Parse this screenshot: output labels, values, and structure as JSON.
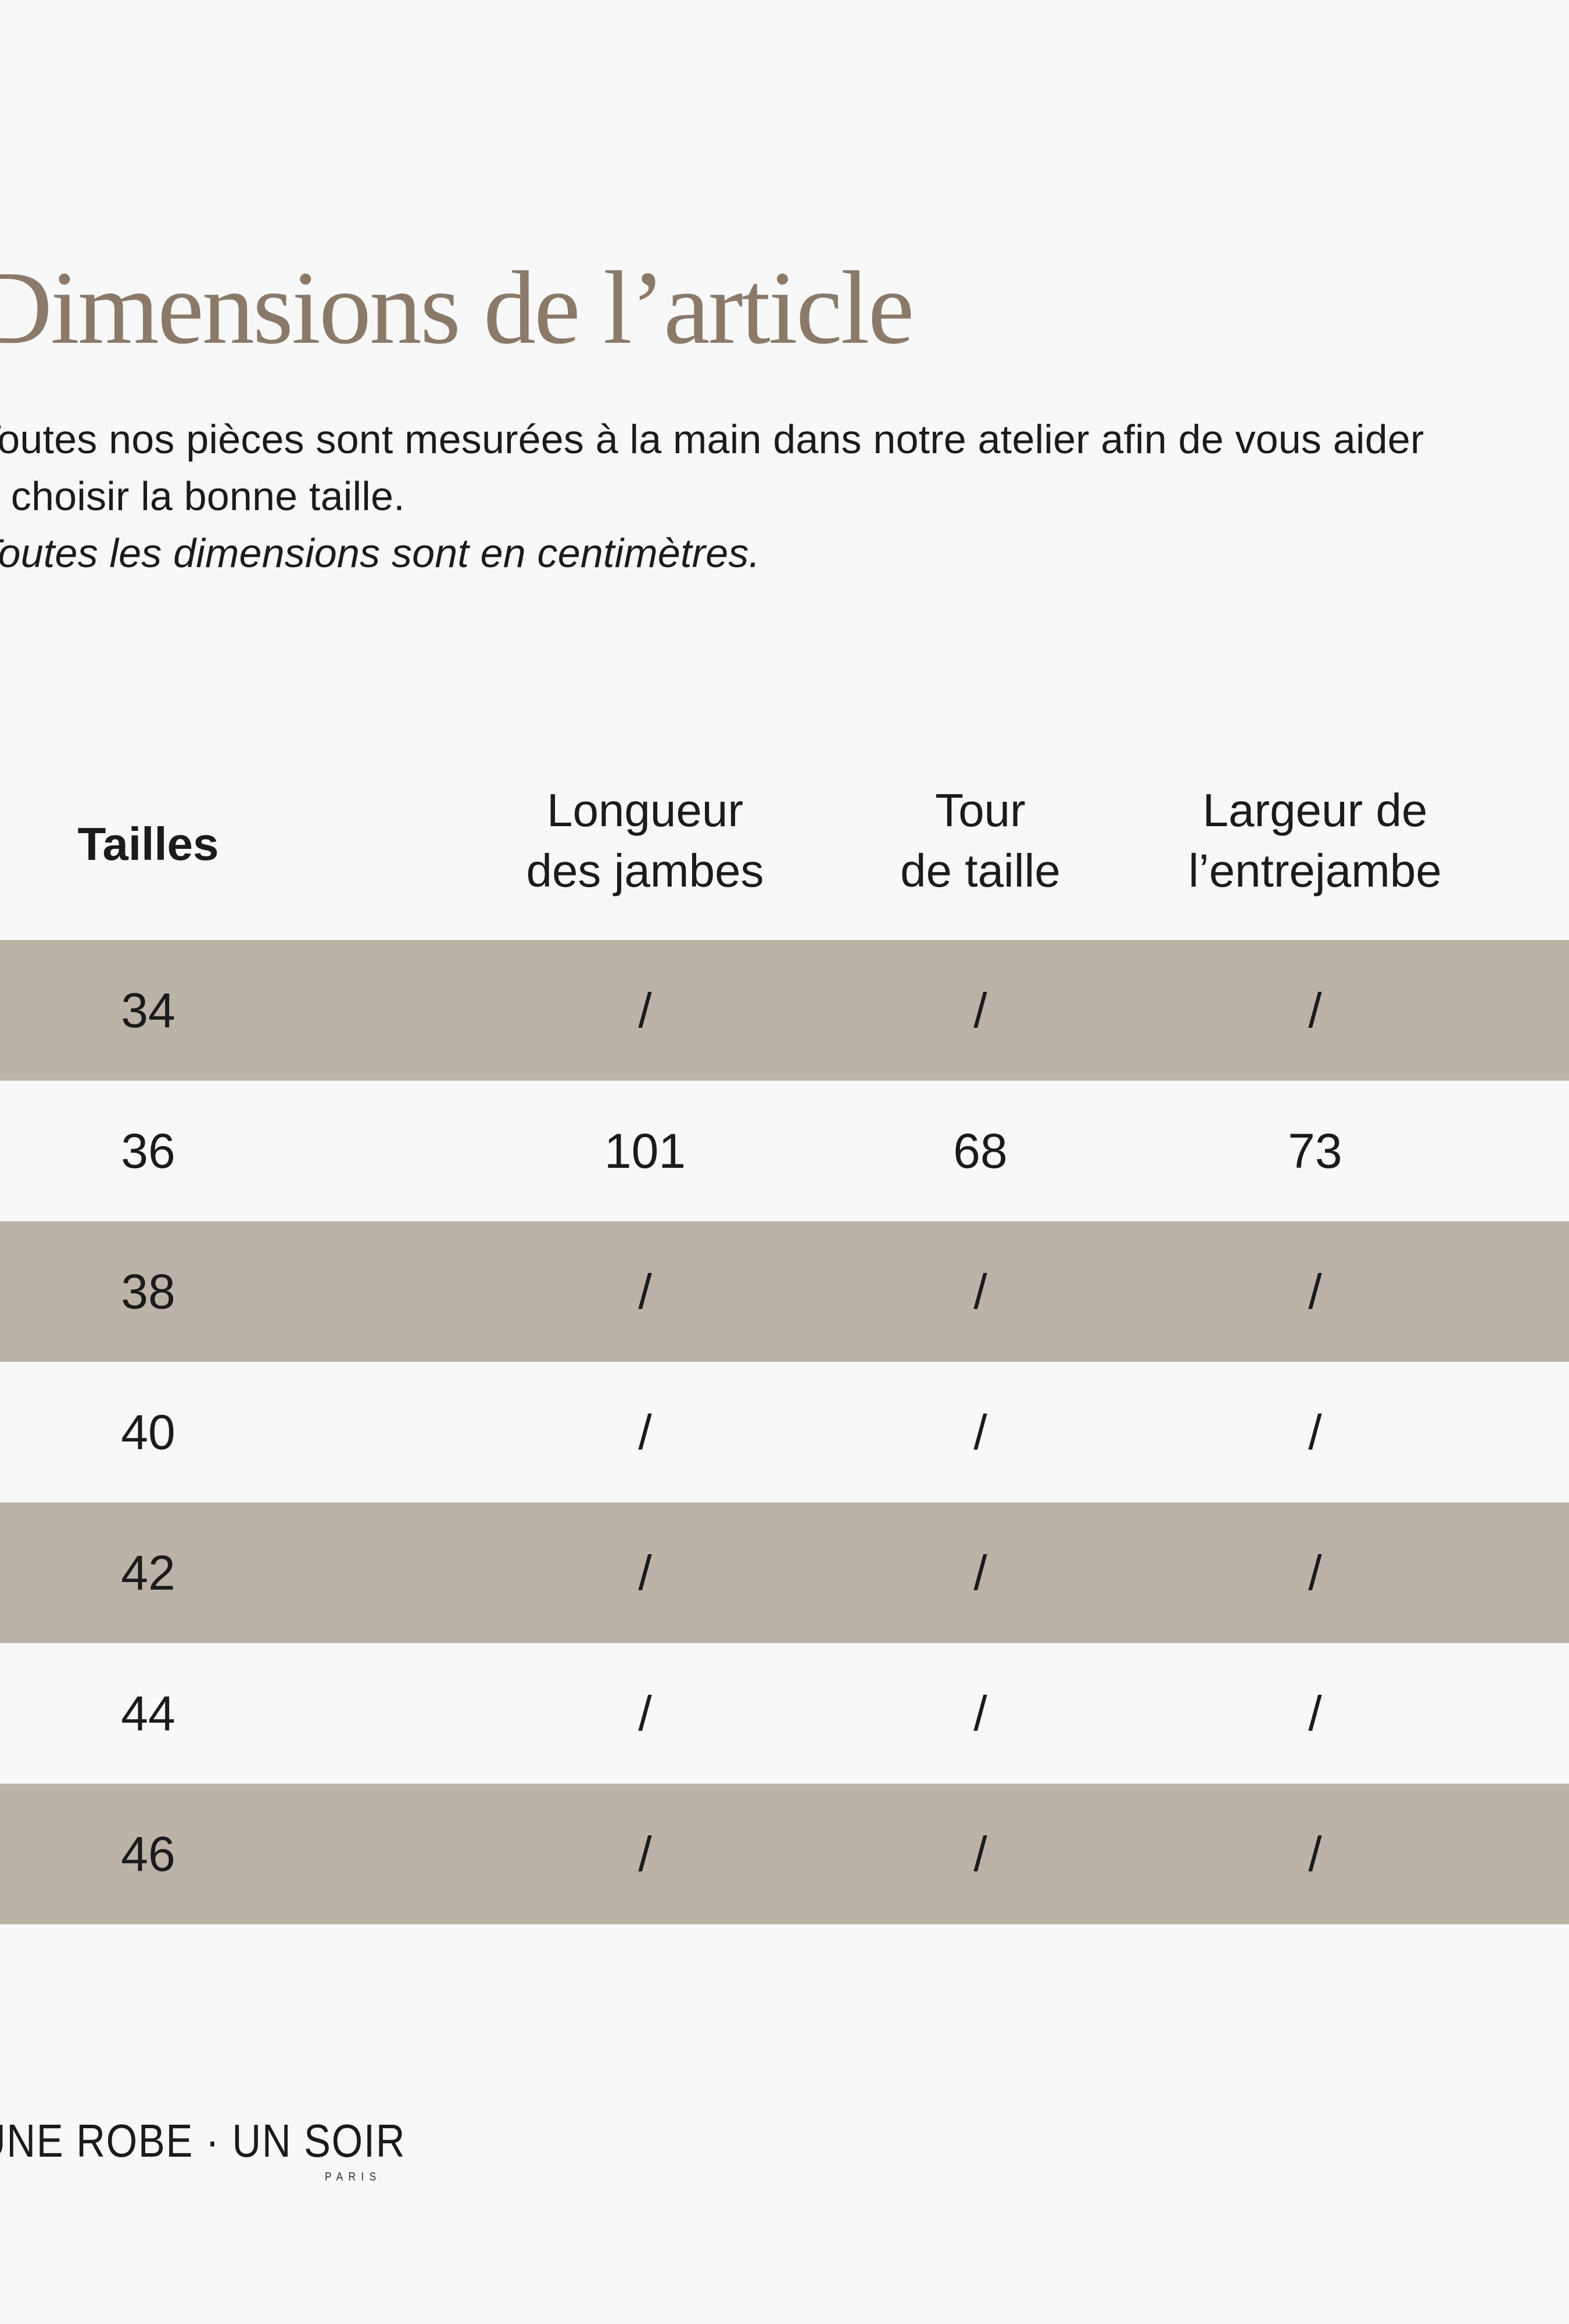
{
  "title": {
    "text": "Dimensions de l’article"
  },
  "intro": {
    "line1": "Toutes nos pièces sont mesurées à la main dans notre atelier afin de vous aider",
    "line2": "à choisir la bonne taille.",
    "note": "Toutes les dimensions sont en centimètres."
  },
  "table": {
    "headers": {
      "sizes": "Tailles",
      "leg": [
        "Longueur",
        "des jambes"
      ],
      "waist": [
        "Tour",
        "de taille"
      ],
      "crotch": [
        "Largeur de",
        "l’entrejambe"
      ]
    },
    "rows": [
      {
        "size": "34",
        "leg": "/",
        "waist": "/",
        "crotch": "/"
      },
      {
        "size": "36",
        "leg": "101",
        "waist": "68",
        "crotch": "73"
      },
      {
        "size": "38",
        "leg": "/",
        "waist": "/",
        "crotch": "/"
      },
      {
        "size": "40",
        "leg": "/",
        "waist": "/",
        "crotch": "/"
      },
      {
        "size": "42",
        "leg": "/",
        "waist": "/",
        "crotch": "/"
      },
      {
        "size": "44",
        "leg": "/",
        "waist": "/",
        "crotch": "/"
      },
      {
        "size": "46",
        "leg": "/",
        "waist": "/",
        "crotch": "/"
      }
    ]
  },
  "footer": {
    "brand": "UNE ROBE · UN SOIR",
    "city": "PARIS"
  },
  "colors": {
    "background": "#f8f8f8",
    "stripe": "#bbb3a7",
    "title": "#8b7a6a",
    "text": "#1b1b1b"
  }
}
